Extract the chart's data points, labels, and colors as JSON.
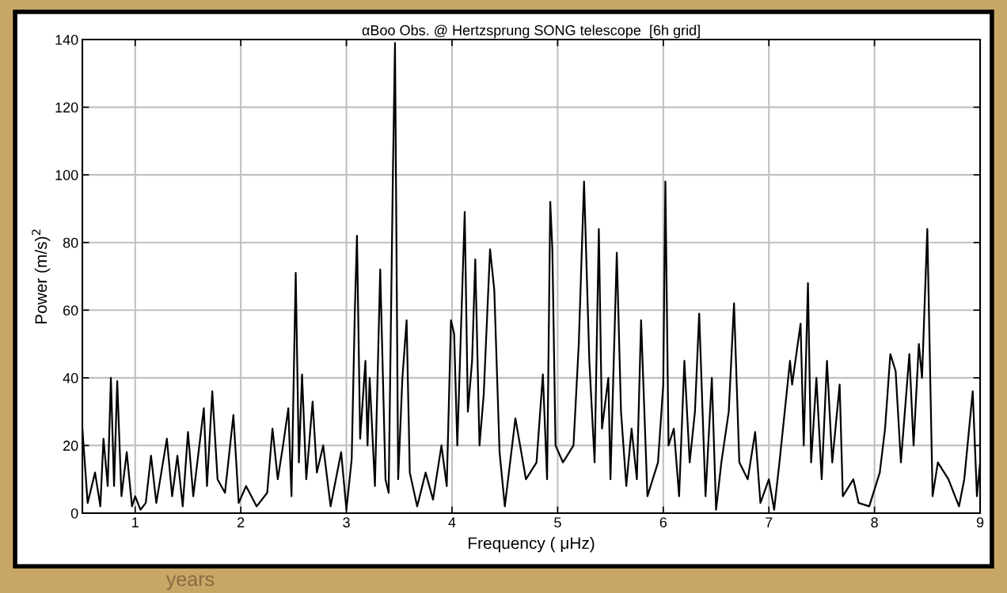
{
  "chart_data": {
    "type": "line",
    "title": "αBoo Obs. @ Hertzsprung SONG telescope  [6h grid]",
    "xlabel": "Frequency ( μHz)",
    "ylabel": "Power (m/s)$^{2}$",
    "xlim": [
      0.5,
      9
    ],
    "xticks": [
      1,
      2,
      3,
      4,
      5,
      6,
      7,
      8,
      9
    ],
    "ylim": [
      0,
      140
    ],
    "yticks": [
      0,
      20,
      40,
      60,
      80,
      100,
      120,
      140
    ],
    "grid": true,
    "marker": "none",
    "line_style": "solid",
    "annotations": [
      "years"
    ],
    "series": [
      {
        "color": "#000000",
        "x": [
          0.5,
          0.55,
          0.62,
          0.67,
          0.7,
          0.74,
          0.77,
          0.8,
          0.83,
          0.87,
          0.92,
          0.97,
          1.0,
          1.05,
          1.1,
          1.15,
          1.2,
          1.3,
          1.35,
          1.4,
          1.45,
          1.5,
          1.55,
          1.65,
          1.68,
          1.73,
          1.78,
          1.85,
          1.93,
          1.98,
          2.05,
          2.15,
          2.25,
          2.3,
          2.35,
          2.4,
          2.45,
          2.48,
          2.52,
          2.55,
          2.58,
          2.62,
          2.68,
          2.72,
          2.78,
          2.85,
          2.95,
          3.0,
          3.05,
          3.08,
          3.1,
          3.13,
          3.18,
          3.2,
          3.22,
          3.27,
          3.32,
          3.37,
          3.4,
          3.44,
          3.46,
          3.49,
          3.53,
          3.57,
          3.6,
          3.67,
          3.75,
          3.82,
          3.9,
          3.95,
          3.99,
          4.02,
          4.05,
          4.12,
          4.15,
          4.19,
          4.22,
          4.26,
          4.3,
          4.36,
          4.4,
          4.45,
          4.5,
          4.6,
          4.7,
          4.8,
          4.86,
          4.9,
          4.93,
          4.95,
          4.98,
          5.05,
          5.15,
          5.2,
          5.25,
          5.3,
          5.35,
          5.39,
          5.42,
          5.48,
          5.5,
          5.56,
          5.6,
          5.65,
          5.7,
          5.75,
          5.79,
          5.85,
          5.95,
          6.0,
          6.02,
          6.05,
          6.1,
          6.15,
          6.2,
          6.25,
          6.3,
          6.34,
          6.4,
          6.46,
          6.5,
          6.55,
          6.62,
          6.67,
          6.72,
          6.8,
          6.87,
          6.92,
          7.0,
          7.05,
          7.1,
          7.2,
          7.22,
          7.3,
          7.33,
          7.37,
          7.4,
          7.45,
          7.5,
          7.55,
          7.6,
          7.67,
          7.7,
          7.8,
          7.85,
          7.95,
          8.05,
          8.1,
          8.15,
          8.2,
          8.25,
          8.33,
          8.37,
          8.42,
          8.45,
          8.5,
          8.55,
          8.6,
          8.7,
          8.8,
          8.85,
          8.93,
          8.97,
          9.0
        ],
        "values": [
          25,
          3,
          12,
          2,
          22,
          8,
          40,
          8,
          39,
          5,
          18,
          2,
          5,
          1,
          3,
          17,
          3,
          22,
          5,
          17,
          2,
          24,
          5,
          31,
          8,
          36,
          10,
          6,
          29,
          3,
          8,
          2,
          6,
          25,
          10,
          20,
          31,
          5,
          71,
          15,
          41,
          10,
          33,
          12,
          20,
          2,
          18,
          1,
          16,
          60,
          82,
          22,
          45,
          20,
          40,
          8,
          72,
          10,
          6,
          100,
          139,
          10,
          40,
          57,
          12,
          2,
          12,
          4,
          20,
          8,
          57,
          53,
          20,
          89,
          30,
          45,
          75,
          20,
          35,
          78,
          66,
          18,
          2,
          28,
          10,
          15,
          41,
          10,
          92,
          78,
          20,
          15,
          20,
          50,
          98,
          45,
          15,
          84,
          25,
          40,
          10,
          77,
          30,
          8,
          25,
          10,
          57,
          5,
          15,
          38,
          98,
          20,
          25,
          5,
          45,
          15,
          30,
          59,
          5,
          40,
          1,
          15,
          30,
          62,
          15,
          10,
          24,
          3,
          10,
          1,
          15,
          45,
          38,
          56,
          20,
          68,
          15,
          40,
          10,
          45,
          15,
          38,
          5,
          10,
          3,
          2,
          12,
          25,
          47,
          42,
          15,
          47,
          20,
          50,
          40,
          84,
          5,
          15,
          10,
          2,
          10,
          36,
          5,
          15
        ]
      }
    ]
  }
}
